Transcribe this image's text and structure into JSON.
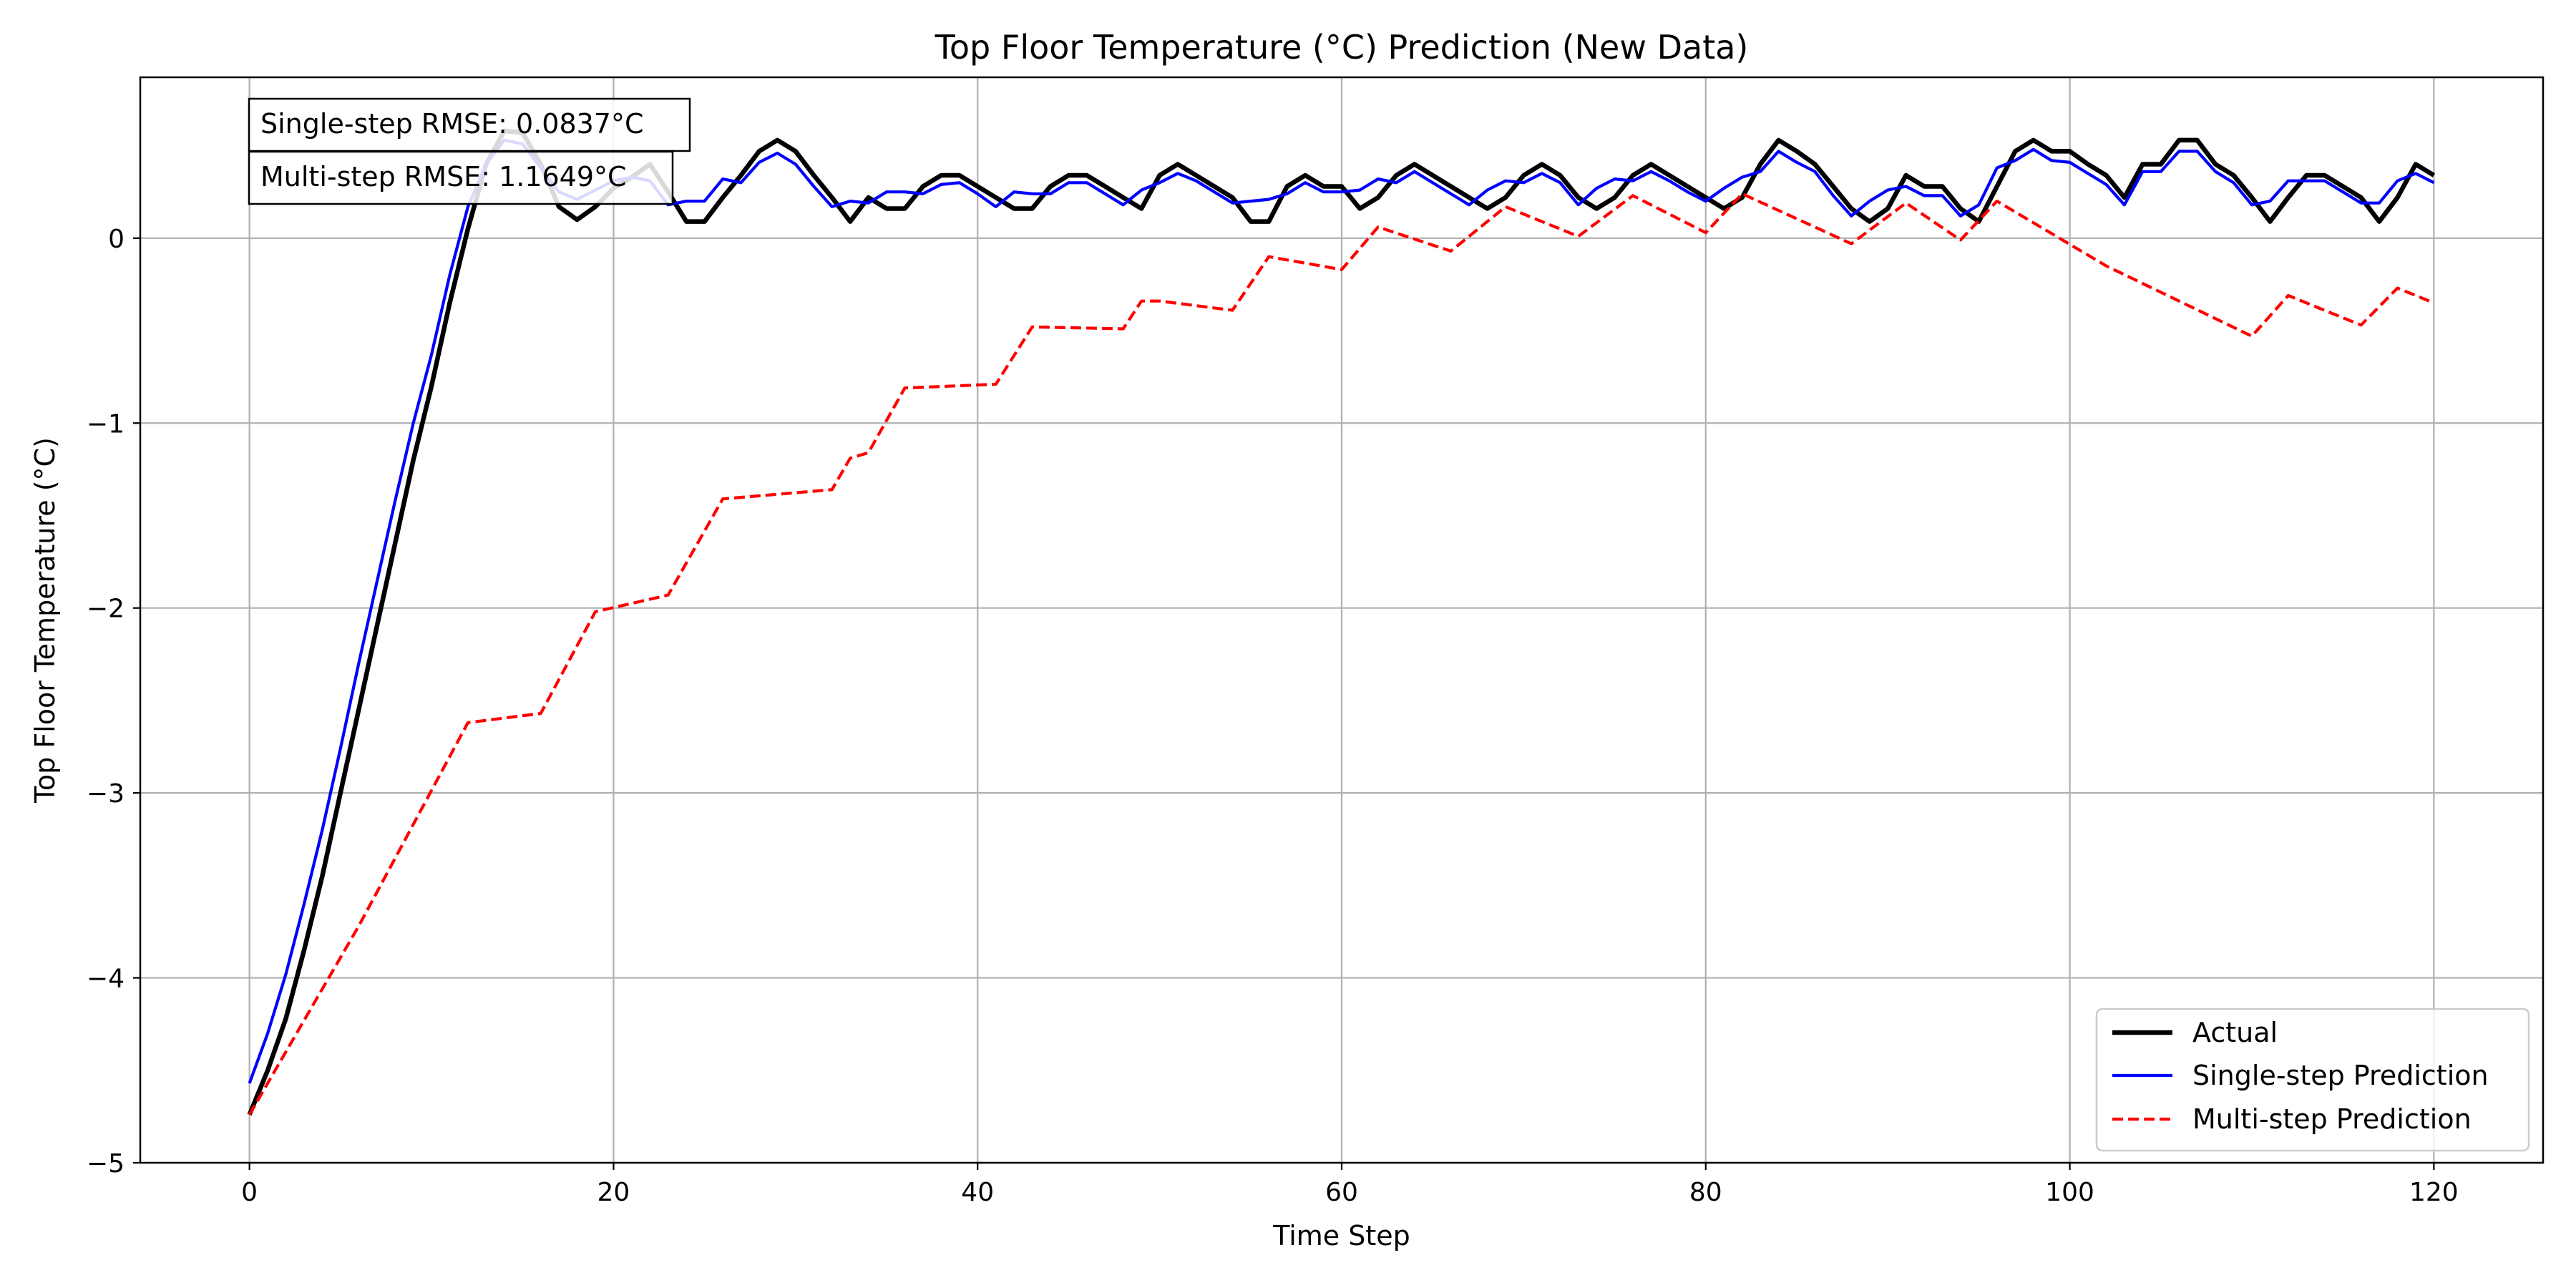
{
  "chart_data": {
    "type": "line",
    "title": "Top Floor Temperature (°C) Prediction (New Data)",
    "xlabel": "Time Step",
    "ylabel": "Top Floor Temperature (°C)",
    "xlim": [
      -6,
      126
    ],
    "ylim": [
      -5,
      0.87
    ],
    "xticks": [
      0,
      20,
      40,
      60,
      80,
      100,
      120
    ],
    "yticks": [
      -5,
      -4,
      -3,
      -2,
      -1,
      0
    ],
    "ytick_labels": [
      "−5",
      "−4",
      "−3",
      "−2",
      "−1",
      "0"
    ],
    "xtick_labels": [
      "0",
      "20",
      "40",
      "60",
      "80",
      "100",
      "120"
    ],
    "grid": true,
    "legend_position": "bottom-right",
    "annotations": [
      "Single-step RMSE: 0.0837°C",
      "Multi-step RMSE: 1.1649°C"
    ],
    "series": [
      {
        "name": "Actual",
        "color": "#000000",
        "style": "solid",
        "points": [
          [
            0,
            -4.74
          ],
          [
            1,
            -4.5
          ],
          [
            2,
            -4.22
          ],
          [
            3,
            -3.85
          ],
          [
            4,
            -3.45
          ],
          [
            5,
            -3.0
          ],
          [
            6,
            -2.55
          ],
          [
            7,
            -2.1
          ],
          [
            8,
            -1.65
          ],
          [
            9,
            -1.2
          ],
          [
            10,
            -0.8
          ],
          [
            11,
            -0.35
          ],
          [
            12,
            0.05
          ],
          [
            13,
            0.4
          ],
          [
            14,
            0.58
          ],
          [
            15,
            0.57
          ],
          [
            16,
            0.4
          ],
          [
            17,
            0.17
          ],
          [
            18,
            0.1
          ],
          [
            19,
            0.17
          ],
          [
            20,
            0.27
          ],
          [
            21,
            0.33
          ],
          [
            22,
            0.4
          ],
          [
            23,
            0.25
          ],
          [
            24,
            0.09
          ],
          [
            25,
            0.09
          ],
          [
            26,
            0.22
          ],
          [
            27,
            0.34
          ],
          [
            28,
            0.47
          ],
          [
            29,
            0.53
          ],
          [
            30,
            0.47
          ],
          [
            31,
            0.34
          ],
          [
            32,
            0.22
          ],
          [
            33,
            0.09
          ],
          [
            34,
            0.22
          ],
          [
            35,
            0.16
          ],
          [
            36,
            0.16
          ],
          [
            37,
            0.28
          ],
          [
            38,
            0.34
          ],
          [
            39,
            0.34
          ],
          [
            40,
            0.28
          ],
          [
            41,
            0.22
          ],
          [
            42,
            0.16
          ],
          [
            43,
            0.16
          ],
          [
            44,
            0.28
          ],
          [
            45,
            0.34
          ],
          [
            46,
            0.34
          ],
          [
            47,
            0.28
          ],
          [
            48,
            0.22
          ],
          [
            49,
            0.16
          ],
          [
            50,
            0.34
          ],
          [
            51,
            0.4
          ],
          [
            52,
            0.34
          ],
          [
            53,
            0.28
          ],
          [
            54,
            0.22
          ],
          [
            55,
            0.09
          ],
          [
            56,
            0.09
          ],
          [
            57,
            0.28
          ],
          [
            58,
            0.34
          ],
          [
            59,
            0.28
          ],
          [
            60,
            0.28
          ],
          [
            61,
            0.16
          ],
          [
            62,
            0.22
          ],
          [
            63,
            0.34
          ],
          [
            64,
            0.4
          ],
          [
            65,
            0.34
          ],
          [
            66,
            0.28
          ],
          [
            67,
            0.22
          ],
          [
            68,
            0.16
          ],
          [
            69,
            0.22
          ],
          [
            70,
            0.34
          ],
          [
            71,
            0.4
          ],
          [
            72,
            0.34
          ],
          [
            73,
            0.22
          ],
          [
            74,
            0.16
          ],
          [
            75,
            0.22
          ],
          [
            76,
            0.34
          ],
          [
            77,
            0.4
          ],
          [
            78,
            0.34
          ],
          [
            79,
            0.28
          ],
          [
            80,
            0.22
          ],
          [
            81,
            0.16
          ],
          [
            82,
            0.22
          ],
          [
            83,
            0.4
          ],
          [
            84,
            0.53
          ],
          [
            85,
            0.47
          ],
          [
            86,
            0.4
          ],
          [
            87,
            0.28
          ],
          [
            88,
            0.16
          ],
          [
            89,
            0.09
          ],
          [
            90,
            0.16
          ],
          [
            91,
            0.34
          ],
          [
            92,
            0.28
          ],
          [
            93,
            0.28
          ],
          [
            94,
            0.16
          ],
          [
            95,
            0.09
          ],
          [
            96,
            0.28
          ],
          [
            97,
            0.47
          ],
          [
            98,
            0.53
          ],
          [
            99,
            0.47
          ],
          [
            100,
            0.47
          ],
          [
            101,
            0.4
          ],
          [
            102,
            0.34
          ],
          [
            103,
            0.22
          ],
          [
            104,
            0.4
          ],
          [
            105,
            0.4
          ],
          [
            106,
            0.53
          ],
          [
            107,
            0.53
          ],
          [
            108,
            0.4
          ],
          [
            109,
            0.34
          ],
          [
            110,
            0.22
          ],
          [
            111,
            0.09
          ],
          [
            112,
            0.22
          ],
          [
            113,
            0.34
          ],
          [
            114,
            0.34
          ],
          [
            115,
            0.28
          ],
          [
            116,
            0.22
          ],
          [
            117,
            0.09
          ],
          [
            118,
            0.22
          ],
          [
            119,
            0.4
          ],
          [
            120,
            0.34
          ]
        ]
      },
      {
        "name": "Single-step Prediction",
        "color": "#0000ff",
        "style": "solid",
        "points": [
          [
            0,
            -4.57
          ],
          [
            1,
            -4.3
          ],
          [
            2,
            -3.98
          ],
          [
            3,
            -3.6
          ],
          [
            4,
            -3.2
          ],
          [
            5,
            -2.76
          ],
          [
            6,
            -2.3
          ],
          [
            7,
            -1.86
          ],
          [
            8,
            -1.42
          ],
          [
            9,
            -1.0
          ],
          [
            10,
            -0.63
          ],
          [
            11,
            -0.2
          ],
          [
            12,
            0.17
          ],
          [
            13,
            0.4
          ],
          [
            14,
            0.53
          ],
          [
            15,
            0.51
          ],
          [
            16,
            0.38
          ],
          [
            17,
            0.25
          ],
          [
            18,
            0.21
          ],
          [
            19,
            0.26
          ],
          [
            20,
            0.31
          ],
          [
            21,
            0.33
          ],
          [
            22,
            0.31
          ],
          [
            23,
            0.18
          ],
          [
            24,
            0.2
          ],
          [
            25,
            0.2
          ],
          [
            26,
            0.32
          ],
          [
            27,
            0.3
          ],
          [
            28,
            0.41
          ],
          [
            29,
            0.46
          ],
          [
            30,
            0.4
          ],
          [
            31,
            0.28
          ],
          [
            32,
            0.17
          ],
          [
            33,
            0.2
          ],
          [
            34,
            0.19
          ],
          [
            35,
            0.25
          ],
          [
            36,
            0.25
          ],
          [
            37,
            0.24
          ],
          [
            38,
            0.29
          ],
          [
            39,
            0.3
          ],
          [
            40,
            0.24
          ],
          [
            41,
            0.17
          ],
          [
            42,
            0.25
          ],
          [
            43,
            0.24
          ],
          [
            44,
            0.24
          ],
          [
            45,
            0.3
          ],
          [
            46,
            0.3
          ],
          [
            47,
            0.24
          ],
          [
            48,
            0.18
          ],
          [
            49,
            0.26
          ],
          [
            50,
            0.3
          ],
          [
            51,
            0.35
          ],
          [
            52,
            0.31
          ],
          [
            53,
            0.25
          ],
          [
            54,
            0.19
          ],
          [
            55,
            0.2
          ],
          [
            56,
            0.21
          ],
          [
            57,
            0.24
          ],
          [
            58,
            0.3
          ],
          [
            59,
            0.25
          ],
          [
            60,
            0.25
          ],
          [
            61,
            0.26
          ],
          [
            62,
            0.32
          ],
          [
            63,
            0.3
          ],
          [
            64,
            0.36
          ],
          [
            65,
            0.3
          ],
          [
            66,
            0.24
          ],
          [
            67,
            0.18
          ],
          [
            68,
            0.26
          ],
          [
            69,
            0.31
          ],
          [
            70,
            0.3
          ],
          [
            71,
            0.35
          ],
          [
            72,
            0.3
          ],
          [
            73,
            0.18
          ],
          [
            74,
            0.27
          ],
          [
            75,
            0.32
          ],
          [
            76,
            0.31
          ],
          [
            77,
            0.36
          ],
          [
            78,
            0.31
          ],
          [
            79,
            0.25
          ],
          [
            80,
            0.2
          ],
          [
            81,
            0.27
          ],
          [
            82,
            0.33
          ],
          [
            83,
            0.36
          ],
          [
            84,
            0.47
          ],
          [
            85,
            0.41
          ],
          [
            86,
            0.36
          ],
          [
            87,
            0.23
          ],
          [
            88,
            0.12
          ],
          [
            89,
            0.2
          ],
          [
            90,
            0.26
          ],
          [
            91,
            0.28
          ],
          [
            92,
            0.23
          ],
          [
            93,
            0.23
          ],
          [
            94,
            0.12
          ],
          [
            95,
            0.18
          ],
          [
            96,
            0.38
          ],
          [
            97,
            0.42
          ],
          [
            98,
            0.48
          ],
          [
            99,
            0.42
          ],
          [
            100,
            0.41
          ],
          [
            101,
            0.35
          ],
          [
            102,
            0.29
          ],
          [
            103,
            0.18
          ],
          [
            104,
            0.36
          ],
          [
            105,
            0.36
          ],
          [
            106,
            0.47
          ],
          [
            107,
            0.47
          ],
          [
            108,
            0.36
          ],
          [
            109,
            0.3
          ],
          [
            110,
            0.18
          ],
          [
            111,
            0.2
          ],
          [
            112,
            0.31
          ],
          [
            113,
            0.31
          ],
          [
            114,
            0.31
          ],
          [
            115,
            0.25
          ],
          [
            116,
            0.19
          ],
          [
            117,
            0.19
          ],
          [
            118,
            0.31
          ],
          [
            119,
            0.35
          ],
          [
            120,
            0.3
          ]
        ]
      },
      {
        "name": "Multi-step Prediction",
        "color": "#ff0000",
        "style": "dashed",
        "points": [
          [
            0,
            -4.74
          ],
          [
            6,
            -3.72
          ],
          [
            12,
            -2.62
          ],
          [
            16,
            -2.57
          ],
          [
            19,
            -2.02
          ],
          [
            23,
            -1.93
          ],
          [
            26,
            -1.41
          ],
          [
            32,
            -1.36
          ],
          [
            33,
            -1.19
          ],
          [
            34,
            -1.16
          ],
          [
            36,
            -0.81
          ],
          [
            41,
            -0.79
          ],
          [
            43,
            -0.48
          ],
          [
            48,
            -0.49
          ],
          [
            49,
            -0.34
          ],
          [
            50,
            -0.34
          ],
          [
            54,
            -0.39
          ],
          [
            56,
            -0.1
          ],
          [
            60,
            -0.17
          ],
          [
            62,
            0.06
          ],
          [
            66,
            -0.07
          ],
          [
            69,
            0.17
          ],
          [
            73,
            0.01
          ],
          [
            76,
            0.23
          ],
          [
            80,
            0.03
          ],
          [
            82,
            0.24
          ],
          [
            88,
            -0.03
          ],
          [
            91,
            0.19
          ],
          [
            94,
            -0.01
          ],
          [
            96,
            0.2
          ],
          [
            102,
            -0.15
          ],
          [
            110,
            -0.53
          ],
          [
            112,
            -0.31
          ],
          [
            116,
            -0.47
          ],
          [
            118,
            -0.27
          ],
          [
            120,
            -0.35
          ]
        ]
      }
    ]
  }
}
